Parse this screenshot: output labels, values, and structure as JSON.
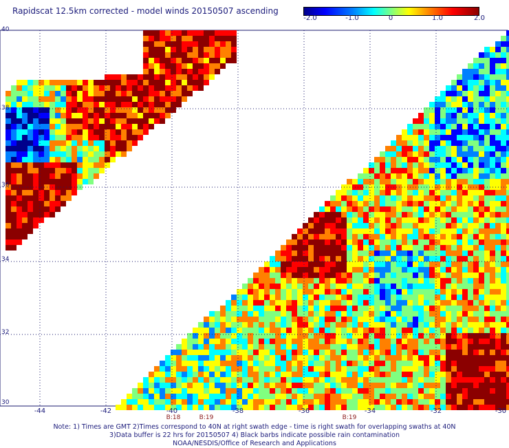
{
  "title": "Rapidscat 12.5km corrected - model winds 20150507 ascending",
  "colorbar": {
    "ticks": [
      {
        "value": -2.0,
        "label": "-2.0"
      },
      {
        "value": -1.0,
        "label": "-1.0"
      },
      {
        "value": 0,
        "label": "0"
      },
      {
        "value": 1.0,
        "label": "1.0"
      },
      {
        "value": 2.0,
        "label": "2.0"
      }
    ],
    "range": [
      -2.0,
      2.0
    ],
    "colors": [
      "#00008b",
      "#0000ff",
      "#0080ff",
      "#00ffff",
      "#80ff80",
      "#ffff00",
      "#ff8000",
      "#ff0000",
      "#8b0000"
    ]
  },
  "axes": {
    "lat_labels": [
      "40",
      "38",
      "36",
      "34",
      "32",
      "30"
    ],
    "lon_labels": [
      "-44",
      "-42",
      "-40",
      "-38",
      "-36",
      "-34",
      "-32",
      "-30"
    ],
    "lat_range": [
      30,
      40
    ],
    "lon_range": [
      -45,
      -30
    ]
  },
  "rev_labels": [
    {
      "lon": -40,
      "label": "B:18"
    },
    {
      "lon": -39,
      "label": "B:19"
    },
    {
      "lon": -34.8,
      "label": "B:19"
    }
  ],
  "notes": [
    "Note: 1) Times are GMT 2)Times correspond to 40N at right swath edge - time is right swath for overlapping swaths at 40N",
    "3)Data buffer is 22 hrs for 20150507 4) Black barbs indicate possible rain contamination",
    "NOAA/NESDIS/Office of Research and Applications"
  ],
  "colors": {
    "grid": "#1a1a6e",
    "text": "#1a1a7a"
  }
}
